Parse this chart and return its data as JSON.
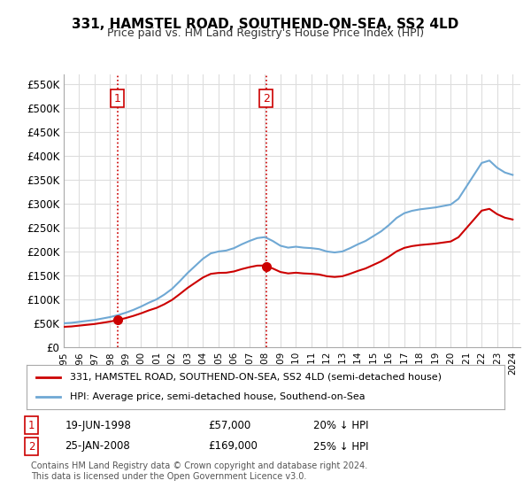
{
  "title": "331, HAMSTEL ROAD, SOUTHEND-ON-SEA, SS2 4LD",
  "subtitle": "Price paid vs. HM Land Registry's House Price Index (HPI)",
  "ylabel": "",
  "ylim": [
    0,
    570000
  ],
  "yticks": [
    0,
    50000,
    100000,
    150000,
    200000,
    250000,
    300000,
    350000,
    400000,
    450000,
    500000,
    550000
  ],
  "ytick_labels": [
    "£0",
    "£50K",
    "£100K",
    "£150K",
    "£200K",
    "£250K",
    "£300K",
    "£350K",
    "£400K",
    "£450K",
    "£500K",
    "£550K"
  ],
  "hpi_color": "#6fa8d4",
  "price_color": "#cc0000",
  "vline_color": "#cc0000",
  "vline_style": ":",
  "background_color": "#ffffff",
  "grid_color": "#dddddd",
  "sale1_date": 1998.47,
  "sale1_price": 57000,
  "sale1_label": "1",
  "sale1_hpi_price": 71250,
  "sale2_date": 2008.07,
  "sale2_price": 169000,
  "sale2_label": "2",
  "sale2_hpi_price": 225333,
  "legend_label1": "331, HAMSTEL ROAD, SOUTHEND-ON-SEA, SS2 4LD (semi-detached house)",
  "legend_label2": "HPI: Average price, semi-detached house, Southend-on-Sea",
  "note1_label": "1",
  "note1_date": "19-JUN-1998",
  "note1_price": "£57,000",
  "note1_hpi": "20% ↓ HPI",
  "note2_label": "2",
  "note2_date": "25-JAN-2008",
  "note2_price": "£169,000",
  "note2_hpi": "25% ↓ HPI",
  "footer": "Contains HM Land Registry data © Crown copyright and database right 2024.\nThis data is licensed under the Open Government Licence v3.0."
}
